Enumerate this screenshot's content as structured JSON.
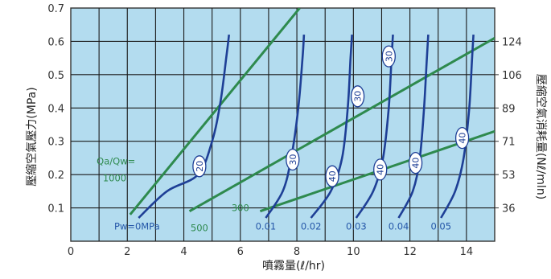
{
  "chart_data": {
    "type": "line",
    "xlabel": "噴霧量(ℓ/hr)",
    "ylabel": "壓縮空氣壓力(MPa)",
    "ylabel_right": "壓縮空氣消耗量(Nℓ/mln)",
    "xlim": [
      0,
      15
    ],
    "ylim": [
      0,
      0.7
    ],
    "x_ticks": [
      "0",
      "2",
      "4",
      "6",
      "8",
      "10",
      "12",
      "14"
    ],
    "y_ticks": [
      "0.1",
      "0.2",
      "0.3",
      "0.4",
      "0.5",
      "0.6",
      "0.7"
    ],
    "y_ticks_right": [
      "36",
      "53",
      "71",
      "89",
      "106",
      "124"
    ],
    "grid": true,
    "colors": {
      "background": "#b3dcef",
      "grid": "#1a1a1a",
      "water_pressure": "#1e3f96",
      "air_water_ratio": "#2e8a4e"
    },
    "water_pressure_series": [
      {
        "label": "Pw=0MPa",
        "oval_label": "20",
        "points": [
          [
            2.4,
            0.07
          ],
          [
            3.4,
            0.15
          ],
          [
            4.5,
            0.2
          ],
          [
            5.0,
            0.3
          ],
          [
            5.3,
            0.42
          ],
          [
            5.5,
            0.55
          ],
          [
            5.6,
            0.62
          ]
        ]
      },
      {
        "label": "0.01",
        "oval_label": "30",
        "points": [
          [
            6.9,
            0.07
          ],
          [
            7.5,
            0.15
          ],
          [
            7.8,
            0.25
          ],
          [
            8.05,
            0.4
          ],
          [
            8.2,
            0.55
          ],
          [
            8.25,
            0.62
          ]
        ]
      },
      {
        "label": "0.02",
        "oval_label": "30",
        "points": [
          [
            8.5,
            0.07
          ],
          [
            9.2,
            0.15
          ],
          [
            9.6,
            0.25
          ],
          [
            9.8,
            0.4
          ],
          [
            9.9,
            0.55
          ],
          [
            9.95,
            0.62
          ]
        ]
      },
      {
        "label": "0.03",
        "oval_label": "30",
        "points": [
          [
            10.1,
            0.07
          ],
          [
            10.7,
            0.15
          ],
          [
            11.05,
            0.25
          ],
          [
            11.25,
            0.4
          ],
          [
            11.35,
            0.55
          ],
          [
            11.4,
            0.62
          ]
        ]
      },
      {
        "label": "0.04",
        "oval_label": "40",
        "points": [
          [
            11.6,
            0.07
          ],
          [
            12.1,
            0.15
          ],
          [
            12.35,
            0.25
          ],
          [
            12.5,
            0.4
          ],
          [
            12.6,
            0.55
          ],
          [
            12.65,
            0.62
          ]
        ]
      },
      {
        "label": "0.05",
        "oval_label": "40",
        "points": [
          [
            13.1,
            0.07
          ],
          [
            13.6,
            0.15
          ],
          [
            13.9,
            0.25
          ],
          [
            14.1,
            0.4
          ],
          [
            14.2,
            0.55
          ],
          [
            14.25,
            0.62
          ]
        ]
      }
    ],
    "air_water_ratio_series": [
      {
        "label": "1000",
        "points": [
          [
            2.1,
            0.08
          ],
          [
            8.1,
            0.7
          ]
        ]
      },
      {
        "label": "500",
        "points": [
          [
            4.2,
            0.09
          ],
          [
            15,
            0.61
          ]
        ]
      },
      {
        "label": "300",
        "points": [
          [
            6.7,
            0.09
          ],
          [
            15,
            0.33
          ]
        ]
      }
    ],
    "oval_labels": [
      {
        "text": "20",
        "x": 4.55,
        "y": 0.225
      },
      {
        "text": "30",
        "x": 7.85,
        "y": 0.245
      },
      {
        "text": "30",
        "x": 10.15,
        "y": 0.435
      },
      {
        "text": "30",
        "x": 11.25,
        "y": 0.555
      },
      {
        "text": "40",
        "x": 9.25,
        "y": 0.195
      },
      {
        "text": "40",
        "x": 10.95,
        "y": 0.215
      },
      {
        "text": "40",
        "x": 12.2,
        "y": 0.235
      },
      {
        "text": "40",
        "x": 13.85,
        "y": 0.31
      }
    ],
    "annotations": {
      "ratio_title": "Qa/Qw=",
      "ratio_1000": "1000",
      "ratio_500": "500",
      "ratio_300": "300"
    }
  }
}
